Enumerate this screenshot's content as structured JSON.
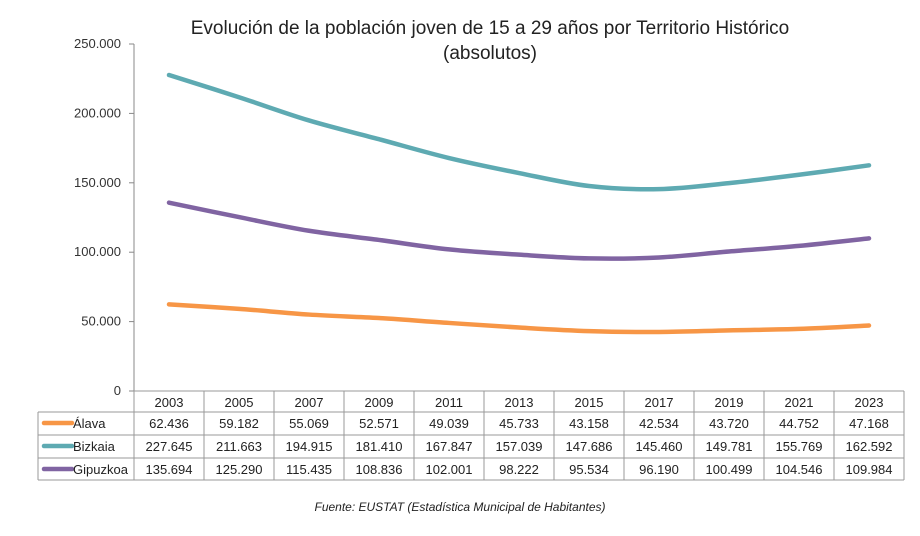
{
  "chart_data": {
    "type": "line",
    "title_line1": "Evolución de la población joven de 15 a 29 años por Territorio Histórico",
    "title_line2": "(absolutos)",
    "categories": [
      "2003",
      "2005",
      "2007",
      "2009",
      "2011",
      "2013",
      "2015",
      "2017",
      "2019",
      "2021",
      "2023"
    ],
    "ylim": [
      0,
      250000
    ],
    "yticks": [
      0,
      50000,
      100000,
      150000,
      200000,
      250000
    ],
    "ytick_labels": [
      "0",
      "50.000",
      "100.000",
      "150.000",
      "200.000",
      "250.000"
    ],
    "grid": false,
    "legend": "data-table",
    "series": [
      {
        "name": "Álava",
        "color": "#F79646",
        "values": [
          62436,
          59182,
          55069,
          52571,
          49039,
          45733,
          43158,
          42534,
          43720,
          44752,
          47168
        ],
        "labels": [
          "62.436",
          "59.182",
          "55.069",
          "52.571",
          "49.039",
          "45.733",
          "43.158",
          "42.534",
          "43.720",
          "44.752",
          "47.168"
        ]
      },
      {
        "name": "Bizkaia",
        "color": "#5EAAB2",
        "values": [
          227645,
          211663,
          194915,
          181410,
          167847,
          157039,
          147686,
          145460,
          149781,
          155769,
          162592
        ],
        "labels": [
          "227.645",
          "211.663",
          "194.915",
          "181.410",
          "167.847",
          "157.039",
          "147.686",
          "145.460",
          "149.781",
          "155.769",
          "162.592"
        ]
      },
      {
        "name": "Gipuzkoa",
        "color": "#8064A2",
        "values": [
          135694,
          125290,
          115435,
          108836,
          102001,
          98222,
          95534,
          96190,
          100499,
          104546,
          109984
        ],
        "labels": [
          "135.694",
          "125.290",
          "115.435",
          "108.836",
          "102.001",
          "98.222",
          "95.534",
          "96.190",
          "100.499",
          "104.546",
          "109.984"
        ]
      }
    ]
  },
  "source": "Fuente: EUSTAT (Estadística Municipal de Habitantes)"
}
